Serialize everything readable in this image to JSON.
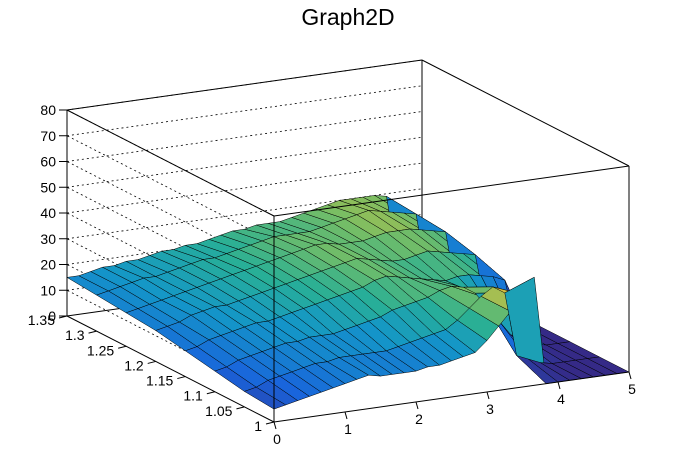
{
  "chart_data": {
    "type": "surface",
    "title": "Graph2D",
    "x_ticks": [
      0,
      1,
      2,
      3,
      4,
      5
    ],
    "y_ticks": [
      1,
      1.05,
      1.1,
      1.15,
      1.2,
      1.25,
      1.3,
      1.35
    ],
    "z_ticks": [
      0,
      10,
      20,
      30,
      40,
      50,
      60,
      70,
      80
    ],
    "xlim": [
      0,
      5
    ],
    "ylim": [
      1,
      1.35
    ],
    "zlim": [
      0,
      80
    ],
    "grid": true,
    "colormap": "viridis-like (blue to yellow)",
    "series": [
      {
        "y": 1.0,
        "z": [
          5,
          6,
          7,
          8,
          9,
          10,
          11,
          12,
          13,
          12,
          12,
          12,
          12,
          13,
          13,
          14,
          15,
          16,
          20,
          25,
          30,
          36,
          42,
          0,
          0,
          0,
          0,
          0,
          0,
          0,
          0
        ]
      },
      {
        "y": 1.05,
        "z": [
          6,
          7,
          9,
          10,
          11,
          12,
          13,
          13,
          14,
          14,
          14,
          14,
          14,
          15,
          16,
          17,
          18,
          19,
          22,
          26,
          30,
          33,
          30,
          5,
          3,
          1,
          0,
          0,
          0,
          0,
          0
        ]
      },
      {
        "y": 1.1,
        "z": [
          8,
          9,
          11,
          12,
          13,
          14,
          15,
          15,
          16,
          16,
          16,
          17,
          18,
          19,
          20,
          22,
          23,
          24,
          25,
          27,
          28,
          27,
          24,
          18,
          12,
          6,
          3,
          1,
          0,
          0,
          0
        ]
      },
      {
        "y": 1.15,
        "z": [
          10,
          11,
          13,
          14,
          15,
          16,
          17,
          17,
          18,
          19,
          20,
          21,
          22,
          23,
          24,
          25,
          27,
          28,
          27,
          26,
          25,
          24,
          23,
          24,
          24,
          23,
          22,
          20,
          0,
          0,
          0
        ]
      },
      {
        "y": 1.2,
        "z": [
          12,
          13,
          14,
          16,
          17,
          18,
          18,
          19,
          20,
          21,
          22,
          23,
          24,
          25,
          26,
          27,
          28,
          29,
          28,
          27,
          26,
          26,
          27,
          28,
          27,
          26,
          25,
          24,
          0,
          0,
          0
        ]
      },
      {
        "y": 1.25,
        "z": [
          13,
          14,
          15,
          16,
          17,
          18,
          19,
          20,
          21,
          22,
          23,
          24,
          25,
          26,
          27,
          28,
          29,
          29,
          28,
          28,
          28,
          29,
          30,
          30,
          30,
          29,
          28,
          27,
          0,
          0,
          0
        ]
      },
      {
        "y": 1.3,
        "z": [
          14,
          15,
          16,
          17,
          18,
          18,
          19,
          20,
          21,
          22,
          22,
          23,
          24,
          25,
          26,
          27,
          27,
          27,
          27,
          28,
          29,
          30,
          31,
          32,
          31,
          30,
          29,
          28,
          0,
          0,
          0
        ]
      },
      {
        "y": 1.35,
        "z": [
          15,
          15,
          16,
          17,
          17,
          18,
          18,
          19,
          20,
          20,
          21,
          21,
          22,
          23,
          24,
          24,
          25,
          25,
          25,
          26,
          27,
          28,
          29,
          30,
          30,
          30,
          30,
          29,
          0,
          0,
          0
        ]
      }
    ]
  }
}
